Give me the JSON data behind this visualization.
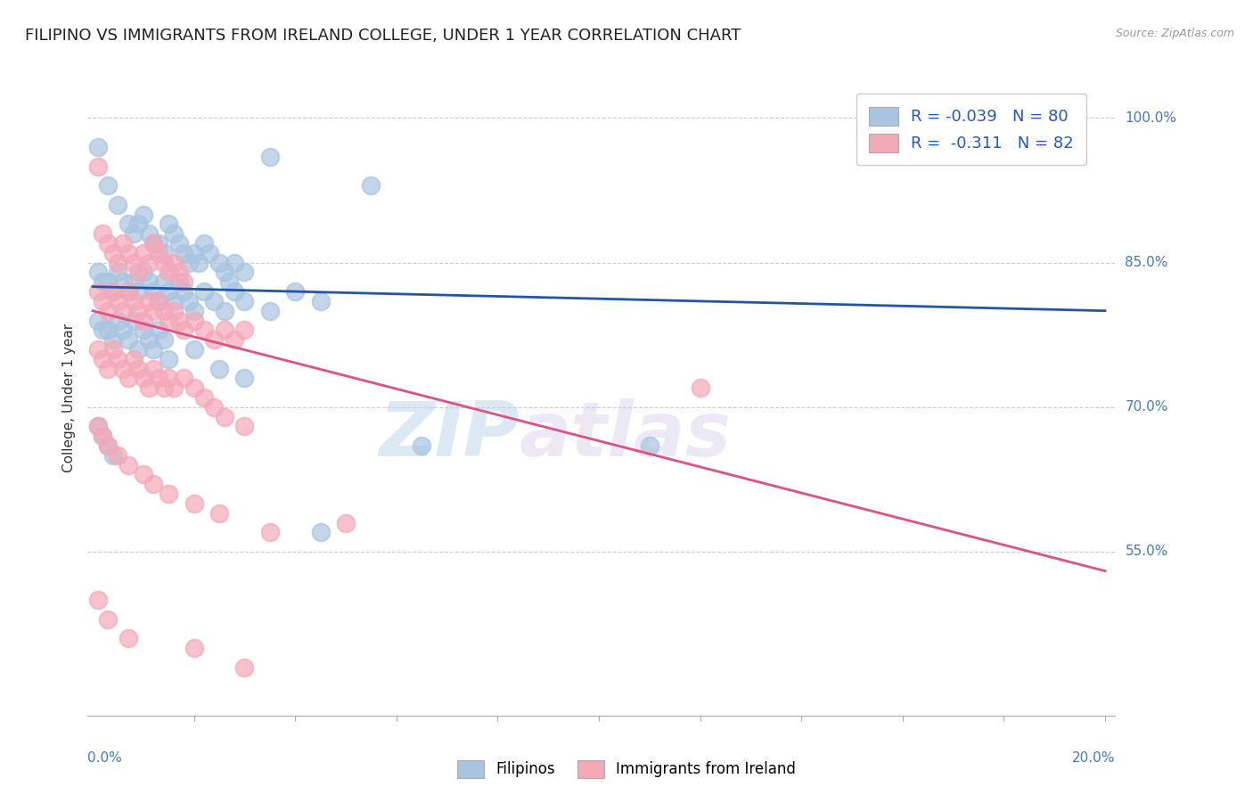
{
  "title": "FILIPINO VS IMMIGRANTS FROM IRELAND COLLEGE, UNDER 1 YEAR CORRELATION CHART",
  "source": "Source: ZipAtlas.com",
  "ylabel": "College, Under 1 year",
  "ylabel_right_ticks": [
    "100.0%",
    "85.0%",
    "70.0%",
    "55.0%"
  ],
  "ylabel_right_vals": [
    1.0,
    0.85,
    0.7,
    0.55
  ],
  "watermark_zip": "ZIP",
  "watermark_atlas": "atlas",
  "legend_blue_label": "Filipinos",
  "legend_pink_label": "Immigrants from Ireland",
  "R_blue": -0.039,
  "N_blue": 80,
  "R_pink": -0.311,
  "N_pink": 82,
  "blue_color": "#a8c4e0",
  "pink_color": "#f4a8b8",
  "line_blue": "#2255aa",
  "line_pink": "#e05080",
  "blue_scatter": [
    [
      0.001,
      0.97
    ],
    [
      0.003,
      0.93
    ],
    [
      0.005,
      0.91
    ],
    [
      0.007,
      0.89
    ],
    [
      0.008,
      0.88
    ],
    [
      0.009,
      0.89
    ],
    [
      0.01,
      0.9
    ],
    [
      0.011,
      0.88
    ],
    [
      0.012,
      0.87
    ],
    [
      0.013,
      0.87
    ],
    [
      0.014,
      0.86
    ],
    [
      0.015,
      0.89
    ],
    [
      0.016,
      0.88
    ],
    [
      0.017,
      0.87
    ],
    [
      0.018,
      0.86
    ],
    [
      0.019,
      0.85
    ],
    [
      0.02,
      0.86
    ],
    [
      0.021,
      0.85
    ],
    [
      0.022,
      0.87
    ],
    [
      0.023,
      0.86
    ],
    [
      0.025,
      0.85
    ],
    [
      0.026,
      0.84
    ],
    [
      0.027,
      0.83
    ],
    [
      0.028,
      0.85
    ],
    [
      0.03,
      0.84
    ],
    [
      0.001,
      0.84
    ],
    [
      0.002,
      0.83
    ],
    [
      0.003,
      0.83
    ],
    [
      0.004,
      0.82
    ],
    [
      0.005,
      0.84
    ],
    [
      0.006,
      0.83
    ],
    [
      0.007,
      0.82
    ],
    [
      0.008,
      0.83
    ],
    [
      0.009,
      0.82
    ],
    [
      0.01,
      0.84
    ],
    [
      0.011,
      0.83
    ],
    [
      0.012,
      0.82
    ],
    [
      0.013,
      0.81
    ],
    [
      0.014,
      0.83
    ],
    [
      0.015,
      0.82
    ],
    [
      0.016,
      0.81
    ],
    [
      0.017,
      0.83
    ],
    [
      0.018,
      0.82
    ],
    [
      0.019,
      0.81
    ],
    [
      0.02,
      0.8
    ],
    [
      0.022,
      0.82
    ],
    [
      0.024,
      0.81
    ],
    [
      0.026,
      0.8
    ],
    [
      0.028,
      0.82
    ],
    [
      0.03,
      0.81
    ],
    [
      0.035,
      0.8
    ],
    [
      0.04,
      0.82
    ],
    [
      0.045,
      0.81
    ],
    [
      0.001,
      0.79
    ],
    [
      0.002,
      0.78
    ],
    [
      0.003,
      0.78
    ],
    [
      0.004,
      0.77
    ],
    [
      0.005,
      0.79
    ],
    [
      0.006,
      0.78
    ],
    [
      0.007,
      0.77
    ],
    [
      0.008,
      0.79
    ],
    [
      0.009,
      0.76
    ],
    [
      0.01,
      0.78
    ],
    [
      0.011,
      0.77
    ],
    [
      0.012,
      0.76
    ],
    [
      0.013,
      0.78
    ],
    [
      0.014,
      0.77
    ],
    [
      0.015,
      0.75
    ],
    [
      0.02,
      0.76
    ],
    [
      0.025,
      0.74
    ],
    [
      0.03,
      0.73
    ],
    [
      0.065,
      0.66
    ],
    [
      0.001,
      0.68
    ],
    [
      0.002,
      0.67
    ],
    [
      0.003,
      0.66
    ],
    [
      0.004,
      0.65
    ],
    [
      0.11,
      0.66
    ],
    [
      0.045,
      0.57
    ],
    [
      0.055,
      0.93
    ],
    [
      0.035,
      0.96
    ]
  ],
  "pink_scatter": [
    [
      0.001,
      0.95
    ],
    [
      0.002,
      0.88
    ],
    [
      0.003,
      0.87
    ],
    [
      0.004,
      0.86
    ],
    [
      0.005,
      0.85
    ],
    [
      0.006,
      0.87
    ],
    [
      0.007,
      0.86
    ],
    [
      0.008,
      0.85
    ],
    [
      0.009,
      0.84
    ],
    [
      0.01,
      0.86
    ],
    [
      0.011,
      0.85
    ],
    [
      0.012,
      0.87
    ],
    [
      0.013,
      0.86
    ],
    [
      0.014,
      0.85
    ],
    [
      0.015,
      0.84
    ],
    [
      0.016,
      0.85
    ],
    [
      0.017,
      0.84
    ],
    [
      0.018,
      0.83
    ],
    [
      0.001,
      0.82
    ],
    [
      0.002,
      0.81
    ],
    [
      0.003,
      0.8
    ],
    [
      0.004,
      0.82
    ],
    [
      0.005,
      0.81
    ],
    [
      0.006,
      0.8
    ],
    [
      0.007,
      0.82
    ],
    [
      0.008,
      0.81
    ],
    [
      0.009,
      0.8
    ],
    [
      0.01,
      0.79
    ],
    [
      0.011,
      0.81
    ],
    [
      0.012,
      0.8
    ],
    [
      0.013,
      0.81
    ],
    [
      0.014,
      0.8
    ],
    [
      0.015,
      0.79
    ],
    [
      0.016,
      0.8
    ],
    [
      0.017,
      0.79
    ],
    [
      0.018,
      0.78
    ],
    [
      0.02,
      0.79
    ],
    [
      0.022,
      0.78
    ],
    [
      0.024,
      0.77
    ],
    [
      0.026,
      0.78
    ],
    [
      0.028,
      0.77
    ],
    [
      0.03,
      0.78
    ],
    [
      0.001,
      0.76
    ],
    [
      0.002,
      0.75
    ],
    [
      0.003,
      0.74
    ],
    [
      0.004,
      0.76
    ],
    [
      0.005,
      0.75
    ],
    [
      0.006,
      0.74
    ],
    [
      0.007,
      0.73
    ],
    [
      0.008,
      0.75
    ],
    [
      0.009,
      0.74
    ],
    [
      0.01,
      0.73
    ],
    [
      0.011,
      0.72
    ],
    [
      0.012,
      0.74
    ],
    [
      0.013,
      0.73
    ],
    [
      0.014,
      0.72
    ],
    [
      0.015,
      0.73
    ],
    [
      0.016,
      0.72
    ],
    [
      0.018,
      0.73
    ],
    [
      0.02,
      0.72
    ],
    [
      0.022,
      0.71
    ],
    [
      0.024,
      0.7
    ],
    [
      0.026,
      0.69
    ],
    [
      0.03,
      0.68
    ],
    [
      0.001,
      0.68
    ],
    [
      0.002,
      0.67
    ],
    [
      0.003,
      0.66
    ],
    [
      0.005,
      0.65
    ],
    [
      0.007,
      0.64
    ],
    [
      0.01,
      0.63
    ],
    [
      0.012,
      0.62
    ],
    [
      0.015,
      0.61
    ],
    [
      0.02,
      0.6
    ],
    [
      0.025,
      0.59
    ],
    [
      0.035,
      0.57
    ],
    [
      0.05,
      0.58
    ],
    [
      0.12,
      0.72
    ],
    [
      0.001,
      0.5
    ],
    [
      0.003,
      0.48
    ],
    [
      0.007,
      0.46
    ],
    [
      0.02,
      0.45
    ],
    [
      0.03,
      0.43
    ]
  ],
  "blue_line_x": [
    0.0,
    0.2
  ],
  "blue_line_y": [
    0.825,
    0.8
  ],
  "pink_line_x": [
    0.0,
    0.2
  ],
  "pink_line_y": [
    0.8,
    0.53
  ],
  "xlim": [
    -0.001,
    0.202
  ],
  "ylim": [
    0.38,
    1.04
  ],
  "title_fontsize": 13,
  "source_fontsize": 9,
  "grid_yticks": [
    1.0,
    0.85,
    0.7,
    0.55
  ],
  "xtick_minor_vals": [
    0.02,
    0.04,
    0.06,
    0.08,
    0.1,
    0.12,
    0.14,
    0.16,
    0.18,
    0.2
  ]
}
